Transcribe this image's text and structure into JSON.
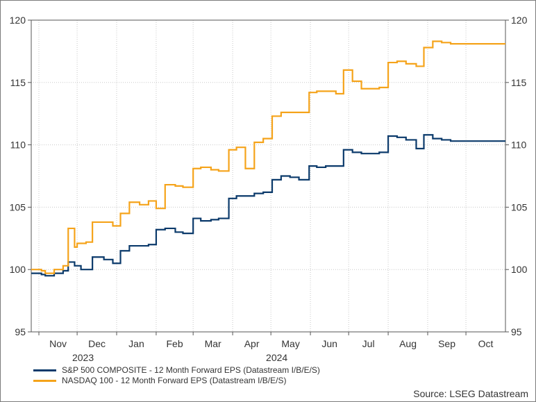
{
  "chart_data": {
    "type": "line",
    "title": "",
    "xlabel": "",
    "ylabel": "",
    "ylim": [
      95,
      120
    ],
    "y_ticks": [
      95,
      100,
      105,
      110,
      115,
      120
    ],
    "y_axis_sides": [
      "left",
      "right"
    ],
    "grid": true,
    "legend_placement": "bottom-left",
    "x_month_labels": [
      "Nov",
      "Dec",
      "Jan",
      "Feb",
      "Mar",
      "Apr",
      "May",
      "Jun",
      "Jul",
      "Aug",
      "Sep",
      "Oct"
    ],
    "x_year_labels": [
      {
        "label": "2023",
        "under": "Dec"
      },
      {
        "label": "2024",
        "under": "May"
      }
    ],
    "series": [
      {
        "name": "S&P 500 COMPOSITE - 12 Month Forward EPS (Datastream I/B/E/S)",
        "color": "#0b3a6b",
        "x": [
          "2023-10-27",
          "2023-11-03",
          "2023-11-06",
          "2023-11-13",
          "2023-11-20",
          "2023-11-24",
          "2023-11-29",
          "2023-12-01",
          "2023-12-04",
          "2023-12-08",
          "2023-12-13",
          "2023-12-22",
          "2023-12-29",
          "2024-01-04",
          "2024-01-11",
          "2024-01-19",
          "2024-01-26",
          "2024-02-01",
          "2024-02-08",
          "2024-02-16",
          "2024-02-22",
          "2024-03-01",
          "2024-03-07",
          "2024-03-15",
          "2024-03-21",
          "2024-03-29",
          "2024-04-04",
          "2024-04-11",
          "2024-04-18",
          "2024-04-25",
          "2024-05-02",
          "2024-05-09",
          "2024-05-16",
          "2024-05-23",
          "2024-05-31",
          "2024-06-06",
          "2024-06-13",
          "2024-06-21",
          "2024-06-27",
          "2024-07-04",
          "2024-07-11",
          "2024-07-19",
          "2024-07-25",
          "2024-08-01",
          "2024-08-08",
          "2024-08-15",
          "2024-08-23",
          "2024-08-29",
          "2024-09-05",
          "2024-09-12",
          "2024-09-19",
          "2024-09-26",
          "2024-10-03",
          "2024-10-10",
          "2024-10-17",
          "2024-10-24",
          "2024-10-31"
        ],
        "y": [
          99.7,
          99.6,
          99.5,
          99.7,
          99.9,
          100.6,
          100.3,
          100.3,
          100.0,
          100.0,
          101.0,
          100.8,
          100.5,
          101.5,
          101.9,
          101.9,
          102.0,
          103.2,
          103.3,
          103.0,
          102.9,
          104.1,
          103.9,
          104.0,
          104.1,
          105.7,
          105.9,
          105.9,
          106.1,
          106.2,
          107.2,
          107.5,
          107.4,
          107.2,
          108.3,
          108.2,
          108.3,
          108.3,
          109.6,
          109.4,
          109.3,
          109.3,
          109.4,
          110.7,
          110.6,
          110.4,
          109.7,
          110.8,
          110.5,
          110.4,
          110.3,
          110.3,
          110.3,
          110.3,
          110.3,
          110.3,
          110.3
        ]
      },
      {
        "name": "NASDAQ 100 - 12 Month Forward EPS (Datastream I/B/E/S)",
        "color": "#f5a31a",
        "x": [
          "2023-10-27",
          "2023-11-03",
          "2023-11-06",
          "2023-11-13",
          "2023-11-20",
          "2023-11-24",
          "2023-11-29",
          "2023-12-01",
          "2023-12-04",
          "2023-12-08",
          "2023-12-13",
          "2023-12-22",
          "2023-12-29",
          "2024-01-04",
          "2024-01-11",
          "2024-01-19",
          "2024-01-26",
          "2024-02-01",
          "2024-02-08",
          "2024-02-16",
          "2024-02-22",
          "2024-03-01",
          "2024-03-07",
          "2024-03-15",
          "2024-03-21",
          "2024-03-29",
          "2024-04-04",
          "2024-04-11",
          "2024-04-18",
          "2024-04-25",
          "2024-05-02",
          "2024-05-09",
          "2024-05-16",
          "2024-05-23",
          "2024-05-31",
          "2024-06-06",
          "2024-06-13",
          "2024-06-21",
          "2024-06-27",
          "2024-07-04",
          "2024-07-11",
          "2024-07-19",
          "2024-07-25",
          "2024-08-01",
          "2024-08-08",
          "2024-08-15",
          "2024-08-23",
          "2024-08-29",
          "2024-09-05",
          "2024-09-12",
          "2024-09-19",
          "2024-09-26",
          "2024-10-03",
          "2024-10-10",
          "2024-10-17",
          "2024-10-24",
          "2024-10-31"
        ],
        "y": [
          100.0,
          99.9,
          99.7,
          100.0,
          100.3,
          103.3,
          101.8,
          102.1,
          102.1,
          102.2,
          103.8,
          103.8,
          103.5,
          104.5,
          105.4,
          105.2,
          105.5,
          104.9,
          106.8,
          106.7,
          106.6,
          108.1,
          108.2,
          108.0,
          107.9,
          109.6,
          109.8,
          108.1,
          110.2,
          110.5,
          112.3,
          112.6,
          112.6,
          112.6,
          114.2,
          114.3,
          114.3,
          114.1,
          116.0,
          115.1,
          114.5,
          114.5,
          114.6,
          116.6,
          116.7,
          116.5,
          116.3,
          117.8,
          118.3,
          118.2,
          118.1,
          118.1,
          118.1,
          118.1,
          118.1,
          118.1,
          118.1
        ]
      }
    ]
  },
  "legend": {
    "items": [
      {
        "label": "S&P 500 COMPOSITE - 12 Month Forward EPS (Datastream I/B/E/S)",
        "color": "#0b3a6b"
      },
      {
        "label": "NASDAQ 100 - 12 Month Forward EPS (Datastream I/B/E/S)",
        "color": "#f5a31a"
      }
    ]
  },
  "source": "Source: LSEG Datastream"
}
